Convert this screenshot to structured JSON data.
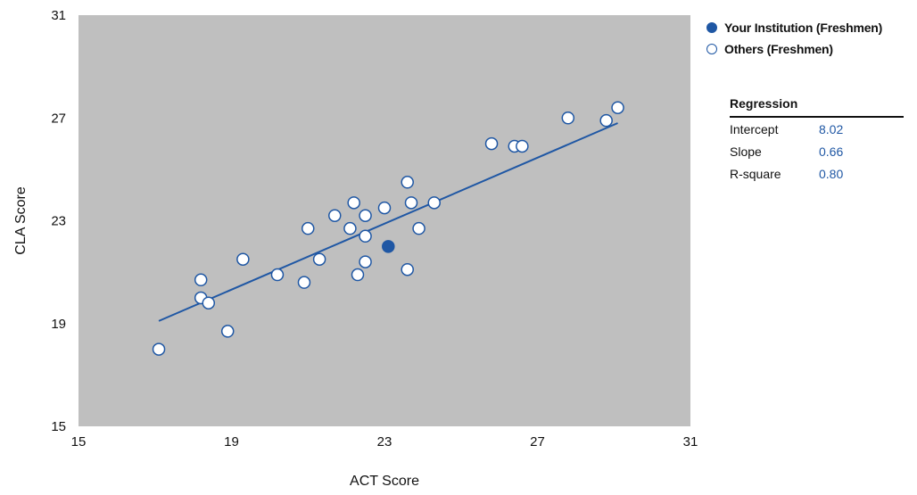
{
  "chart_data": {
    "type": "scatter",
    "xlabel": "ACT Score",
    "ylabel": "CLA Score",
    "xlim": [
      15,
      31
    ],
    "ylim": [
      15,
      31
    ],
    "xticks": [
      "15",
      "19",
      "23",
      "27",
      "31"
    ],
    "yticks": [
      "15",
      "19",
      "23",
      "27",
      "31"
    ],
    "plot_background": "#bfbfbf",
    "accent_color": "#1f57a4",
    "series": [
      {
        "name": "Your Institution (Freshmen)",
        "marker": "filled",
        "points": [
          [
            23.1,
            22.0
          ]
        ]
      },
      {
        "name": "Others (Freshmen)",
        "marker": "hollow",
        "points": [
          [
            17.1,
            18.0
          ],
          [
            18.2,
            20.7
          ],
          [
            18.2,
            20.0
          ],
          [
            18.4,
            19.8
          ],
          [
            18.9,
            18.7
          ],
          [
            19.3,
            21.5
          ],
          [
            20.2,
            20.9
          ],
          [
            20.9,
            20.6
          ],
          [
            21.0,
            22.7
          ],
          [
            21.3,
            21.5
          ],
          [
            21.7,
            23.2
          ],
          [
            22.1,
            22.7
          ],
          [
            22.2,
            23.7
          ],
          [
            22.3,
            20.9
          ],
          [
            22.5,
            23.2
          ],
          [
            22.5,
            22.4
          ],
          [
            22.5,
            21.4
          ],
          [
            23.0,
            23.5
          ],
          [
            23.6,
            24.5
          ],
          [
            23.6,
            21.1
          ],
          [
            23.7,
            23.7
          ],
          [
            23.9,
            22.7
          ],
          [
            24.3,
            23.7
          ],
          [
            25.8,
            26.0
          ],
          [
            26.4,
            25.9
          ],
          [
            26.6,
            25.9
          ],
          [
            27.8,
            27.0
          ],
          [
            28.8,
            26.9
          ],
          [
            29.1,
            27.4
          ]
        ]
      }
    ],
    "regression_line": {
      "x": [
        17.1,
        29.1
      ],
      "y": [
        19.1,
        26.8
      ]
    }
  },
  "regression": {
    "title": "Regression",
    "rows": [
      {
        "label": "Intercept",
        "value": "8.02"
      },
      {
        "label": "Slope",
        "value": "0.66"
      },
      {
        "label": "R-square",
        "value": "0.80"
      }
    ]
  }
}
